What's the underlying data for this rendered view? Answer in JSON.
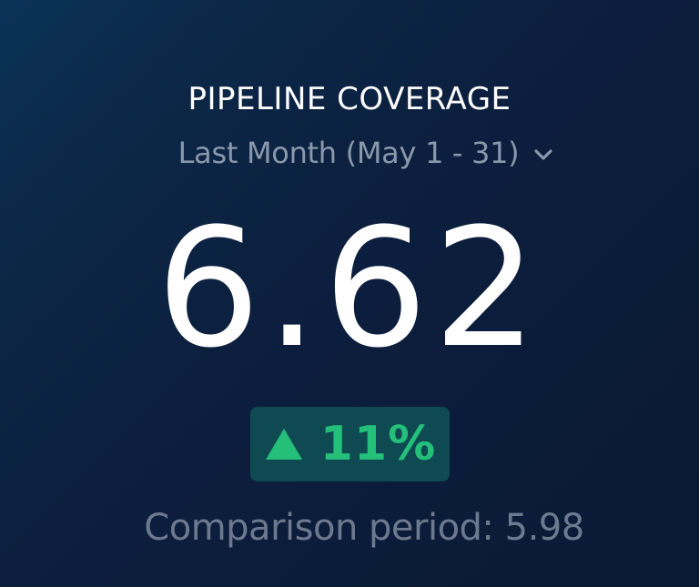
{
  "widget": {
    "title": "PIPELINE COVERAGE",
    "period": {
      "selected": "Last Month (May 1 - 31)",
      "icon": "chevron-down-icon"
    },
    "metric_value": "6.62",
    "delta": {
      "icon": "triangle-up-icon",
      "value": "11%",
      "color": "#24c07a",
      "badge_color": "#0f4a52"
    },
    "comparison": {
      "text": "Comparison period: 5.98"
    }
  },
  "colors": {
    "background": "#0c1f3e",
    "title": "#ffffff",
    "muted_text": "#8a98ab"
  }
}
